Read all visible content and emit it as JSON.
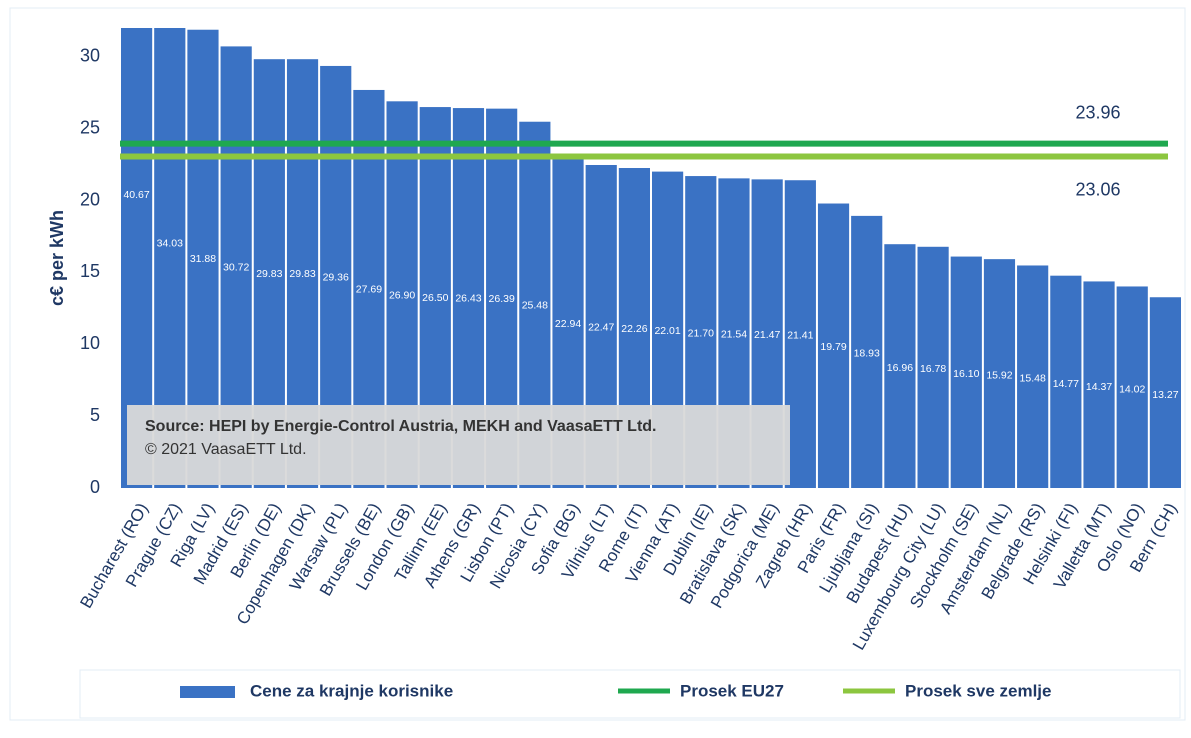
{
  "chart_data": {
    "type": "bar",
    "y_label": "c€ per kWh",
    "categories": [
      "Bucharest (RO)",
      "Prague (CZ)",
      "Riga (LV)",
      "Madrid (ES)",
      "Berlin (DE)",
      "Copenhagen (DK)",
      "Warsaw (PL)",
      "Brussels (BE)",
      "London (GB)",
      "Tallinn (EE)",
      "Athens (GR)",
      "Lisbon (PT)",
      "Nicosia (CY)",
      "Sofia (BG)",
      "Vilnius (LT)",
      "Rome (IT)",
      "Vienna (AT)",
      "Dublin (IE)",
      "Bratislava (SK)",
      "Podgorica (ME)",
      "Zagreb (HR)",
      "Paris (FR)",
      "Ljubljana (SI)",
      "Budapest (HU)",
      "Luxembourg City (LU)",
      "Stockholm (SE)",
      "Amsterdam (NL)",
      "Belgrade (RS)",
      "Helsinki (FI)",
      "Valletta (MT)",
      "Oslo (NO)",
      "Bern (CH)"
    ],
    "series": [
      {
        "name": "Cene za krajnje korisnike",
        "color": "#3a72c4",
        "values": [
          40.67,
          34.03,
          31.88,
          30.72,
          29.83,
          29.83,
          29.36,
          27.69,
          26.9,
          26.5,
          26.43,
          26.39,
          25.48,
          22.94,
          22.47,
          22.26,
          22.01,
          21.7,
          21.54,
          21.47,
          21.41,
          19.79,
          18.93,
          16.96,
          16.78,
          16.1,
          15.92,
          15.48,
          14.77,
          14.37,
          14.02,
          13.27
        ],
        "value_labels": [
          "40.67",
          "34.03",
          "31.88",
          "30.72",
          "29.83",
          "29.83",
          "29.36",
          "27.69",
          "26.90",
          "26.50",
          "26.43",
          "26.39",
          "25.48",
          "22.94",
          "22.47",
          "22.26",
          "22.01",
          "21.70",
          "21.54",
          "21.47",
          "21.41",
          "19.79",
          "18.93",
          "16.96",
          "16.78",
          "16.10",
          "15.92",
          "15.48",
          "14.77",
          "14.37",
          "14.02",
          "13.27"
        ]
      }
    ],
    "reference_lines": [
      {
        "name": "Prosek EU27",
        "color": "#1fa84f",
        "value": 23.96
      },
      {
        "name": "Prosek sve zemlje",
        "color": "#8cc63f",
        "value": 23.06
      }
    ],
    "annotations": [
      "Source: HEPI by Energie-Control Austria, MEKH and VaasaETT Ltd.",
      "© 2021 VaasaETT Ltd."
    ],
    "ylim": [
      0,
      32
    ],
    "yticks": [
      0,
      5,
      10,
      15,
      20,
      25,
      30
    ]
  }
}
